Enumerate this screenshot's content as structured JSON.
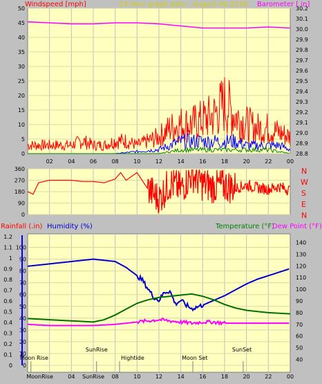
{
  "header": {
    "wind_label": "Windspeed [mph]",
    "title": "24 hour graph date : August 06 2018",
    "baro_label": "Barometer [ in]"
  },
  "labels": {
    "rain": "Rainfall (.in)",
    "humidity": "Humidity (%)",
    "temperature": "Temperature (°F)",
    "dewpoint": "Dew Point (°F)"
  },
  "compass": [
    "N",
    "W",
    "S",
    "E",
    "N"
  ],
  "events": [
    {
      "label": "Moon Rise",
      "hour": 0.3
    },
    {
      "label": "SunRise",
      "hour": 6.3
    },
    {
      "label": "Hightide",
      "hour": 8.4
    },
    {
      "label": "Moon Set",
      "hour": 15.1
    },
    {
      "label": "SunSet",
      "hour": 19.7
    }
  ],
  "bottom_axis_labels": [
    "MoonRise",
    "04",
    "SunRise",
    "08",
    "10",
    "12",
    "14",
    "16",
    "18",
    "20",
    "22",
    "00"
  ],
  "colors": {
    "plot_bg": "#ffffc0",
    "frame_bg": "#c0c0c0",
    "wind": "#ff0000",
    "gust": "#0000ff",
    "avg": "#008000",
    "barometer": "#ff00ff",
    "humidity": "#0000cc",
    "temperature": "#007000",
    "dewpoint": "#ff00ff",
    "title": "#d0d000"
  },
  "chart_data": [
    {
      "type": "line",
      "title": "24 hour graph date : August 06 2018",
      "x_ticks": [
        "02",
        "04",
        "06",
        "08",
        "10",
        "12",
        "14",
        "16",
        "18",
        "20",
        "22",
        "00"
      ],
      "ylabel": "Windspeed [mph]",
      "ylim": [
        0,
        50
      ],
      "y_ticks": [
        0,
        5,
        10,
        15,
        20,
        25,
        30,
        35,
        40,
        45,
        50
      ],
      "y2label": "Barometer [ in]",
      "y2lim": [
        28.8,
        30.2
      ],
      "y2_ticks": [
        28.8,
        28.9,
        29.0,
        29.1,
        29.2,
        29.3,
        29.4,
        29.5,
        29.6,
        29.7,
        29.8,
        29.9,
        30.0,
        30.1,
        30.2
      ],
      "series": [
        {
          "name": "Barometer",
          "axis": "y2",
          "x": [
            0,
            2,
            4,
            6,
            8,
            10,
            12,
            14,
            16,
            18,
            20,
            22,
            24
          ],
          "y": [
            30.07,
            30.06,
            30.05,
            30.05,
            30.06,
            30.06,
            30.05,
            30.03,
            30.01,
            30.01,
            30.01,
            30.02,
            30.01
          ]
        },
        {
          "name": "Windspeed",
          "x": [
            0,
            1,
            2,
            3,
            4,
            5,
            6,
            7,
            8,
            9,
            10,
            11,
            12,
            13,
            14,
            15,
            16,
            17,
            18,
            19,
            20,
            21,
            22,
            23,
            24
          ],
          "y": [
            2,
            2,
            2,
            2,
            2,
            3,
            2,
            2,
            3,
            3,
            2,
            3,
            4,
            6,
            7,
            7,
            8,
            9,
            12,
            9,
            7,
            6,
            6,
            5,
            4
          ]
        },
        {
          "name": "Gust",
          "x": [
            0,
            4,
            8,
            12,
            13,
            14,
            15,
            16,
            17,
            18,
            19,
            20,
            21,
            22,
            23,
            24
          ],
          "y": [
            0,
            0,
            0,
            1,
            2,
            3,
            3,
            3,
            3,
            3,
            3,
            2,
            2,
            2,
            2,
            1
          ]
        },
        {
          "name": "Average",
          "x": [
            0,
            12,
            14,
            16,
            18,
            20,
            22,
            24
          ],
          "y": [
            0,
            0,
            1,
            1,
            1,
            1,
            1,
            0
          ]
        }
      ]
    },
    {
      "type": "line",
      "ylabel": "Wind Direction",
      "ylim": [
        0,
        360
      ],
      "y_ticks": [
        0,
        90,
        180,
        270,
        360
      ],
      "series": [
        {
          "name": "Wind Direction",
          "x": [
            0,
            0.5,
            1,
            2,
            3,
            4,
            5,
            6,
            7,
            8,
            8.5,
            9,
            10,
            11,
            12,
            13,
            14,
            15,
            16,
            17,
            18,
            19,
            20,
            21,
            22,
            23,
            24
          ],
          "y": [
            180,
            160,
            250,
            270,
            270,
            270,
            260,
            260,
            250,
            280,
            330,
            270,
            330,
            200,
            120,
            250,
            200,
            320,
            240,
            220,
            230,
            210,
            230,
            210,
            200,
            220,
            190
          ]
        }
      ]
    },
    {
      "type": "line",
      "x_ticks": [
        "MoonRise",
        "04",
        "SunRise",
        "08",
        "10",
        "12",
        "14",
        "16",
        "18",
        "20",
        "22",
        "00"
      ],
      "ylabel": "Rainfall (.in)",
      "ylim": [
        0,
        1.2
      ],
      "y_ticks": [
        0,
        0.1,
        0.2,
        0.3,
        0.4,
        0.5,
        0.6,
        0.7,
        0.8,
        0.9,
        1,
        1.1,
        1.2
      ],
      "y_humidity_ticks": [
        0,
        10,
        20,
        30,
        40,
        50,
        60,
        70,
        80,
        90,
        100
      ],
      "y2label": "Temperature (°F)",
      "y2lim": [
        30,
        145
      ],
      "y2_ticks": [
        40,
        50,
        60,
        70,
        80,
        90,
        100,
        110,
        120,
        130,
        140
      ],
      "series": [
        {
          "name": "Humidity (%)",
          "axis": "humidity",
          "x": [
            0,
            1,
            2,
            3,
            4,
            5,
            6,
            7,
            8,
            9,
            10,
            10.5,
            11,
            11.5,
            12,
            12.5,
            13,
            13.5,
            14,
            14.5,
            15,
            16,
            17,
            18,
            19,
            20,
            21,
            22,
            23,
            24
          ],
          "y": [
            84,
            85,
            86,
            87,
            88,
            89,
            90,
            89,
            88,
            83,
            76,
            72,
            65,
            58,
            55,
            62,
            63,
            52,
            55,
            51,
            48,
            51,
            55,
            59,
            64,
            69,
            73,
            76,
            79,
            82
          ]
        },
        {
          "name": "Temperature (°F)",
          "axis": "y2",
          "x": [
            0,
            2,
            4,
            6,
            7,
            8,
            9,
            10,
            11,
            12,
            13,
            14,
            15,
            16,
            17,
            18,
            19,
            20,
            22,
            24
          ],
          "y": [
            75,
            74,
            73,
            72,
            74,
            78,
            83,
            88,
            91,
            93,
            94,
            95,
            96,
            94,
            91,
            87,
            84,
            82,
            80,
            79
          ]
        },
        {
          "name": "Dew Point (°F)",
          "axis": "y2",
          "x": [
            0,
            2,
            4,
            6,
            8,
            10,
            11,
            12,
            13,
            14,
            15,
            16,
            17,
            18,
            20,
            22,
            24
          ],
          "y": [
            70,
            69,
            69,
            69,
            70,
            72,
            73,
            74,
            73,
            72,
            71,
            72,
            72,
            71,
            71,
            71,
            71
          ]
        },
        {
          "name": "Rainfall (.in)",
          "axis": "y",
          "x": [
            0,
            24
          ],
          "y": [
            0,
            0
          ]
        }
      ]
    }
  ]
}
